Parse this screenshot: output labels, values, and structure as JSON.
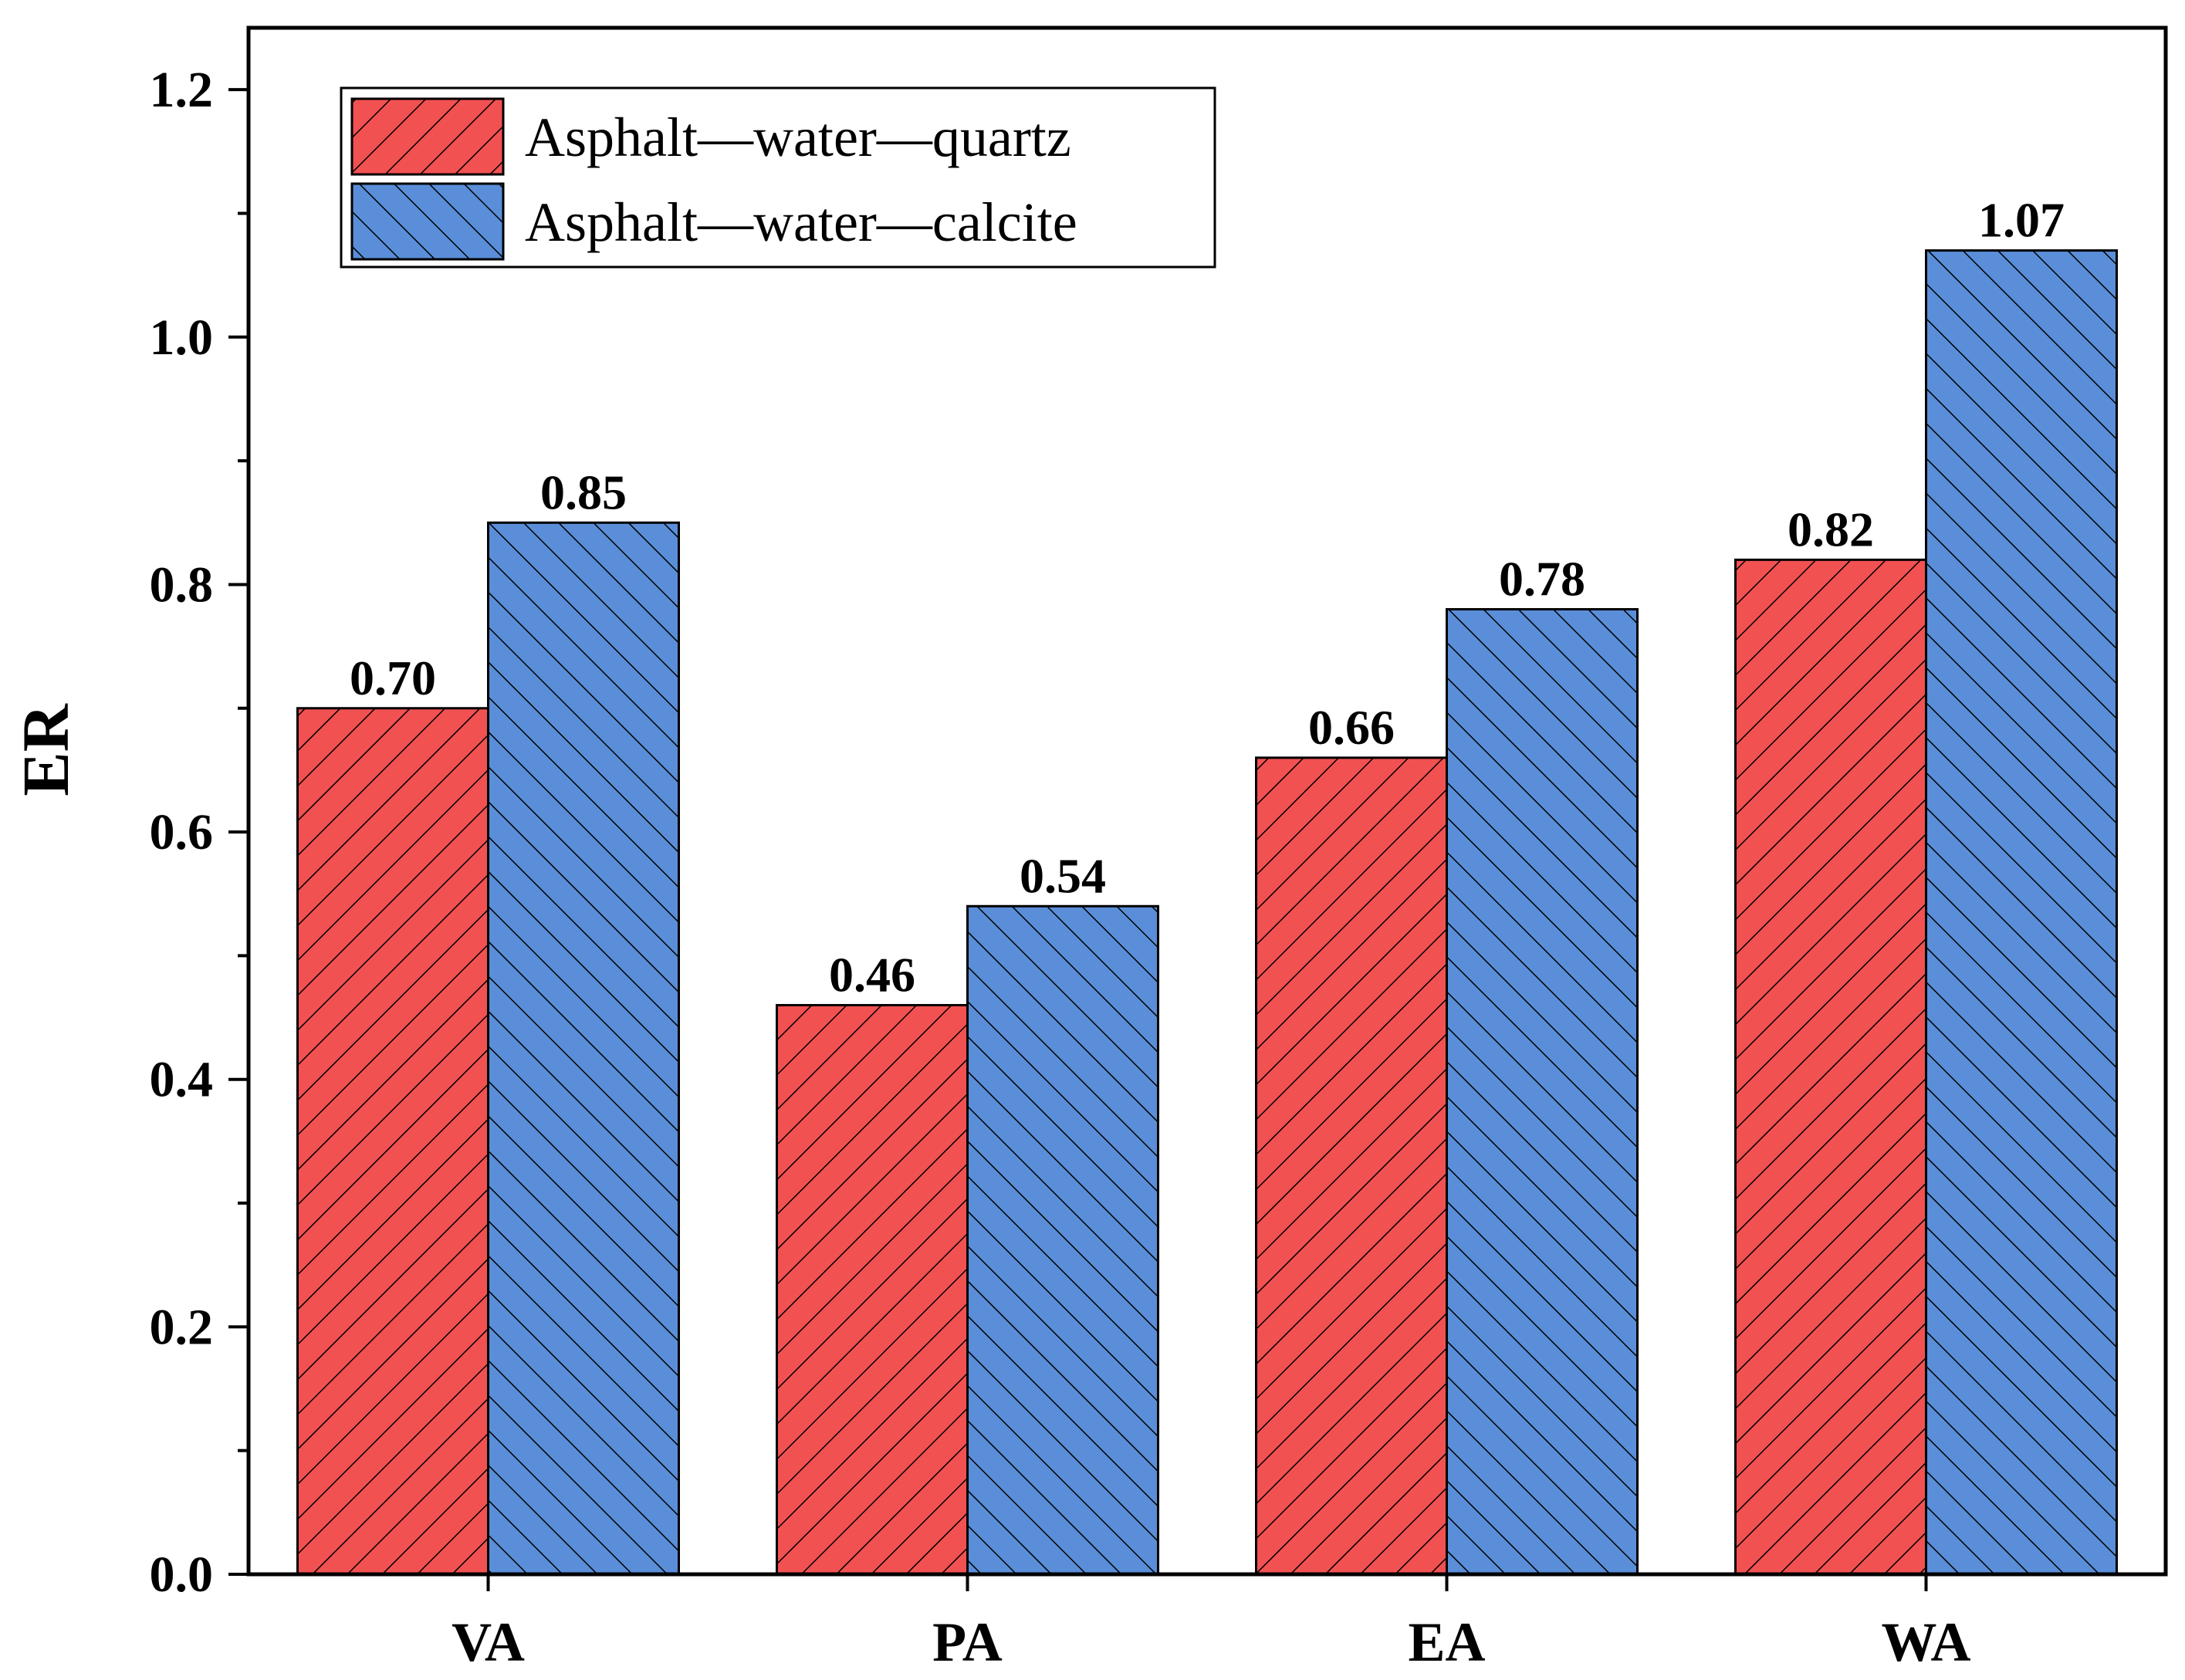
{
  "chart_data": {
    "type": "bar",
    "title": "",
    "xlabel": "",
    "ylabel": "ER",
    "categories": [
      "VA",
      "PA",
      "EA",
      "WA"
    ],
    "series": [
      {
        "name": "Asphalt—water—quartz",
        "values": [
          0.7,
          0.46,
          0.66,
          0.82
        ],
        "labels": [
          "0.70",
          "0.46",
          "0.66",
          "0.82"
        ],
        "color": "#f25152",
        "hatch": "forward-diagonal"
      },
      {
        "name": "Asphalt—water—calcite",
        "values": [
          0.85,
          0.54,
          0.78,
          1.07
        ],
        "labels": [
          "0.85",
          "0.54",
          "0.78",
          "1.07"
        ],
        "color": "#5a8ed8",
        "hatch": "back-diagonal"
      }
    ],
    "ylim": [
      0,
      1.25
    ],
    "yticks": [
      0.0,
      0.2,
      0.4,
      0.6,
      0.8,
      1.0,
      1.2
    ],
    "ytick_labels": [
      "0.0",
      "0.2",
      "0.4",
      "0.6",
      "0.8",
      "1.0",
      "1.2"
    ],
    "legend_position": "top-left",
    "grid": false
  }
}
